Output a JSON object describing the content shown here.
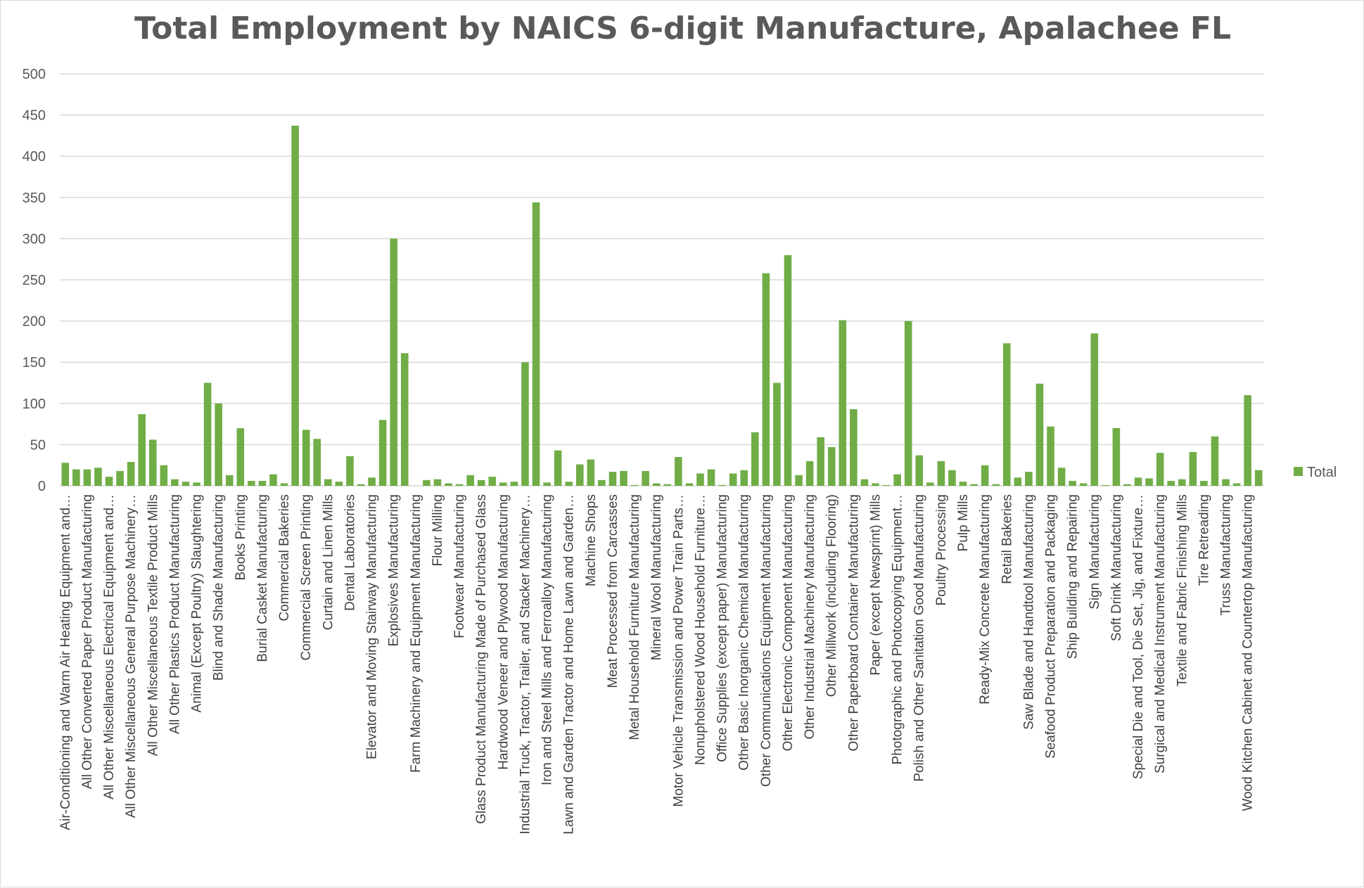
{
  "chart_data": {
    "type": "bar",
    "title": "Total Employment by NAICS 6-digit Manufacture, Apalachee FL",
    "xlabel": "",
    "ylabel": "",
    "ylim": [
      0,
      500
    ],
    "yticks": [
      0,
      50,
      100,
      150,
      200,
      250,
      300,
      350,
      400,
      450,
      500
    ],
    "grid": true,
    "legend": "right",
    "bar_color": "#70ad47",
    "grid_color": "#d9d9d9",
    "categories": [
      "Air-Conditioning and Warm Air Heating Equipment and…",
      "",
      "All Other Converted Paper Product Manufacturing",
      "",
      "All Other Miscellaneous Electrical Equipment and…",
      "",
      "All Other Miscellaneous General Purpose Machinery…",
      "",
      "All Other Miscellaneous Textile Product Mills",
      "",
      "All Other Plastics Product Manufacturing",
      "",
      "Animal (Except Poultry) Slaughtering",
      "",
      "Blind and Shade Manufacturing",
      "",
      "Books Printing",
      "",
      "Burial Casket Manufacturing",
      "",
      "Commercial Bakeries",
      "",
      "Commercial Screen Printing",
      "",
      "Curtain and Linen Mills",
      "",
      "Dental Laboratories",
      "",
      "Elevator and Moving Stairway Manufacturing",
      "",
      "Explosives Manufacturing",
      "",
      "Farm Machinery and Equipment Manufacturing",
      "",
      "Flour Milling",
      "",
      "Footwear Manufacturing",
      "",
      "Glass Product Manufacturing Made of Purchased Glass",
      "",
      "Hardwood Veneer and Plywood Manufacturing",
      "",
      "Industrial Truck, Tractor, Trailer, and Stacker Machinery…",
      "",
      "Iron and Steel Mills and Ferroalloy Manufacturing",
      "",
      "Lawn and Garden Tractor and Home Lawn and Garden…",
      "",
      "Machine Shops",
      "",
      "Meat Processed from Carcasses",
      "",
      "Metal Household Furniture Manufacturing",
      "",
      "Mineral Wool Manufacturing",
      "",
      "Motor Vehicle Transmission and Power Train Parts…",
      "",
      "Nonupholstered Wood Household Furniture…",
      "",
      "Office Supplies (except paper) Manufacturing",
      "",
      "Other Basic Inorganic Chemical Manufacturing",
      "",
      "Other Communications Equipment Manufacturing",
      "",
      "Other Electronic Component Manufacturing",
      "",
      "Other Industrial Machinery Manufacturing",
      "",
      "Other Millwork (including Flooring)",
      "",
      "Other Paperboard Container Manufacturing",
      "",
      "Paper (except Newsprint) Mills",
      "",
      "Photographic and Photocopying Equipment…",
      "",
      "Polish and Other Sanitation Good Manufacturing",
      "",
      "Poultry Processing",
      "",
      "Pulp Mills",
      "",
      "Ready-Mix Concrete Manufacturing",
      "",
      "Retail Bakeries",
      "",
      "Saw Blade and Handtool Manufacturing",
      "",
      "Seafood Product Preparation and Packaging",
      "",
      "Ship Building and Repairing",
      "",
      "Sign Manufacturing",
      "",
      "Soft Drink Manufacturing",
      "",
      "Special Die and Tool, Die Set, Jig, and Fixture…",
      "",
      "Surgical and Medical Instrument Manufacturing",
      "",
      "Textile and Fabric Finishing Mills",
      "",
      "Tire Retreading",
      "",
      "Truss Manufacturing",
      "",
      "Wood Kitchen Cabinet and Countertop Manufacturing",
      ""
    ],
    "series": [
      {
        "name": "Total",
        "values": [
          28,
          20,
          20,
          22,
          11,
          18,
          29,
          87,
          56,
          25,
          8,
          5,
          4,
          125,
          100,
          13,
          70,
          6,
          6,
          14,
          3,
          437,
          68,
          57,
          8,
          5,
          36,
          2,
          10,
          80,
          300,
          161,
          0,
          7,
          8,
          3,
          2,
          13,
          7,
          11,
          4,
          5,
          150,
          344,
          4,
          43,
          5,
          26,
          32,
          7,
          17,
          18,
          1,
          18,
          3,
          2,
          35,
          3,
          15,
          20,
          1,
          15,
          19,
          65,
          258,
          125,
          280,
          13,
          30,
          59,
          47,
          201,
          93,
          8,
          3,
          1,
          14,
          200,
          37,
          4,
          30,
          19,
          5,
          2,
          25,
          2,
          173,
          10,
          17,
          124,
          72,
          22,
          6,
          3,
          185,
          1,
          70,
          2,
          10,
          9,
          40,
          6,
          8,
          41,
          6,
          60,
          8,
          3,
          110,
          19
        ]
      }
    ]
  }
}
